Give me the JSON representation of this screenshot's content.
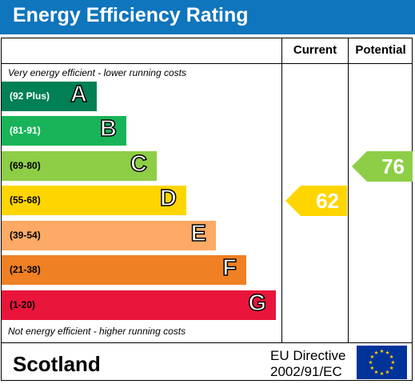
{
  "header": {
    "title": "Energy Efficiency Rating"
  },
  "columns": {
    "current": "Current",
    "potential": "Potential"
  },
  "notes": {
    "top": "Very energy efficient - lower running costs",
    "bottom": "Not energy efficient - higher running costs"
  },
  "bands": [
    {
      "letter": "A",
      "range": "(92 Plus)",
      "color": "#008054",
      "text_color": "#ffffff"
    },
    {
      "letter": "B",
      "range": "(81-91)",
      "color": "#19b459",
      "text_color": "#ffffff"
    },
    {
      "letter": "C",
      "range": "(69-80)",
      "color": "#8dce46",
      "text_color": "#000000"
    },
    {
      "letter": "D",
      "range": "(55-68)",
      "color": "#ffd500",
      "text_color": "#000000"
    },
    {
      "letter": "E",
      "range": "(39-54)",
      "color": "#fcaa65",
      "text_color": "#000000"
    },
    {
      "letter": "F",
      "range": "(21-38)",
      "color": "#ef8023",
      "text_color": "#000000"
    },
    {
      "letter": "G",
      "range": "(1-20)",
      "color": "#e9153b",
      "text_color": "#000000"
    }
  ],
  "ratings": {
    "current": {
      "value": "62",
      "band": "D",
      "color": "#ffd500"
    },
    "potential": {
      "value": "76",
      "band": "C",
      "color": "#8dce46"
    }
  },
  "footer": {
    "country": "Scotland",
    "directive_line1": "EU Directive",
    "directive_line2": "2002/91/EC",
    "flag_icon": "eu-flag-icon"
  }
}
